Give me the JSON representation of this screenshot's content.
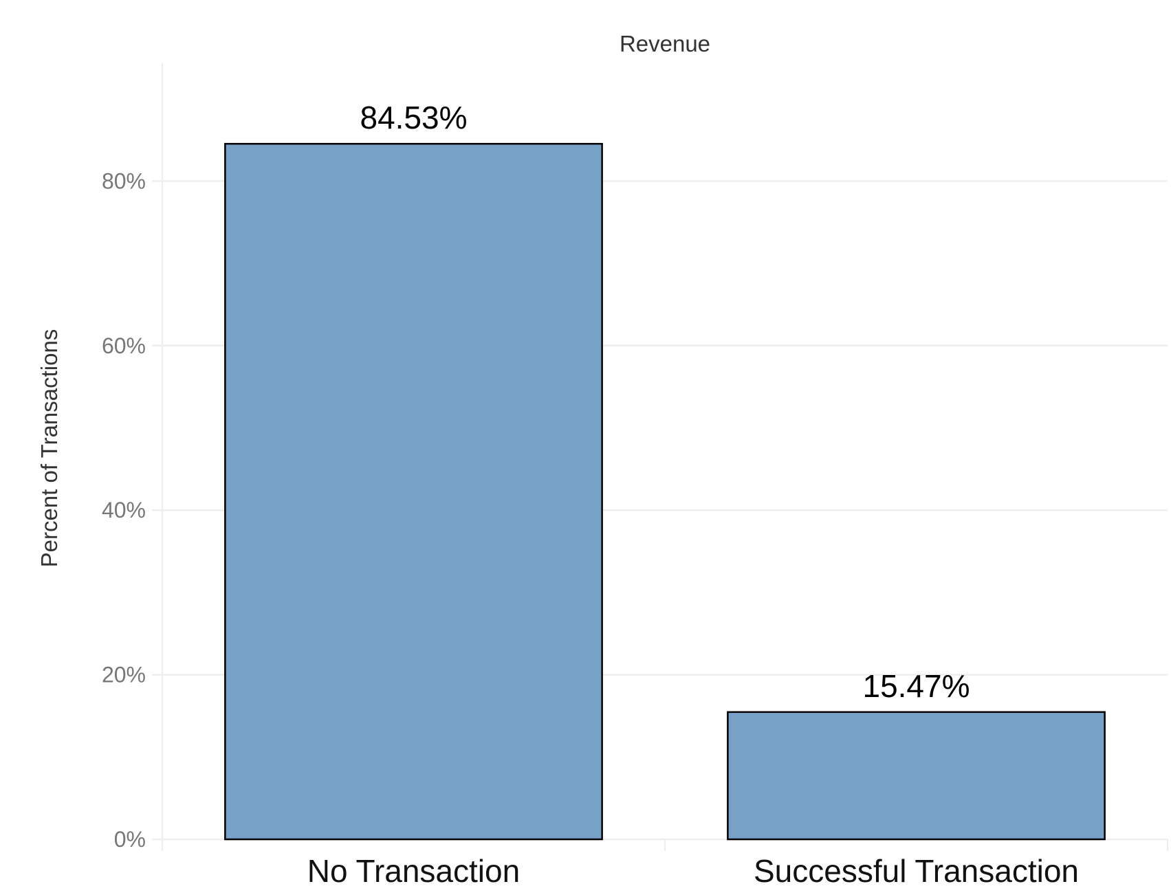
{
  "chart_data": {
    "type": "bar",
    "title": "Revenue",
    "xlabel": "",
    "ylabel": "Percent of Transactions",
    "categories": [
      "No Transaction",
      "Successful Transaction"
    ],
    "values": [
      84.53,
      15.47
    ],
    "data_labels": [
      "84.53%",
      "15.47%"
    ],
    "ylim": [
      0,
      90
    ],
    "yticks": [
      0,
      20,
      40,
      60,
      80
    ],
    "ytick_labels": [
      "0%",
      "20%",
      "40%",
      "60%",
      "80%"
    ],
    "grid": true,
    "legend": "none",
    "bar_color": "#77a1c7",
    "bar_edge_color": "#000000"
  }
}
